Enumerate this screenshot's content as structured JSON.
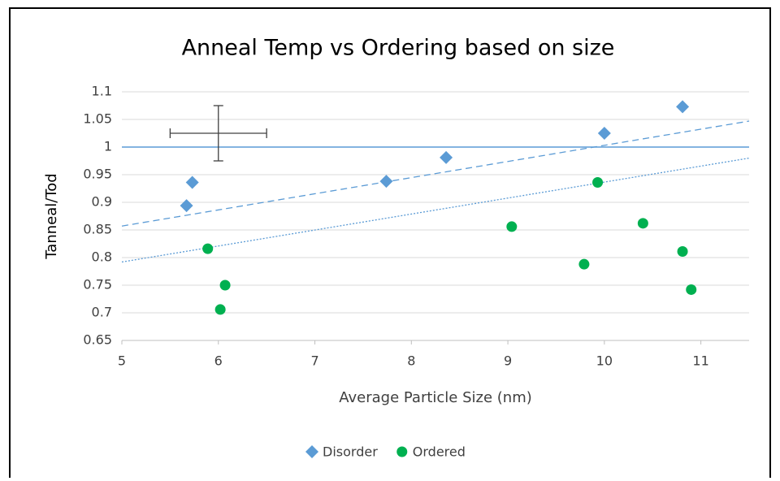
{
  "chart_data": {
    "type": "scatter",
    "title": "Anneal Temp vs Ordering based on size",
    "x_label": "Average Particle Size (nm)",
    "y_label": "Tanneal/Tod",
    "xlim": [
      5,
      11.5
    ],
    "xticks": [
      5,
      6,
      7,
      8,
      9,
      10,
      11
    ],
    "ylim": [
      0.65,
      1.1
    ],
    "yticks": [
      0.65,
      0.7,
      0.75,
      0.8,
      0.85,
      0.9,
      0.95,
      1,
      1.05,
      1.1
    ],
    "grid": true,
    "legend": "bottom",
    "series": [
      {
        "name": "Disorder",
        "color": "#5b9bd5",
        "marker": "diamond",
        "x": [
          5.67,
          5.73,
          7.74,
          8.36,
          10.0,
          10.81
        ],
        "values": [
          0.894,
          0.936,
          0.938,
          0.981,
          1.025,
          1.073
        ]
      },
      {
        "name": "Ordered",
        "color": "#00b050",
        "marker": "circle",
        "x": [
          5.89,
          6.07,
          6.02,
          9.04,
          9.79,
          9.93,
          10.4,
          10.81,
          10.9
        ],
        "values": [
          0.816,
          0.75,
          0.706,
          0.856,
          0.788,
          0.936,
          0.862,
          0.811,
          0.742
        ]
      }
    ],
    "trendlines": [
      {
        "color": "#5b9bd5",
        "dash": "8,5",
        "x": [
          5,
          11.5
        ],
        "y": [
          0.857,
          1.047
        ]
      },
      {
        "color": "#5b9bd5",
        "dash": "2,2",
        "x": [
          5,
          11.5
        ],
        "y": [
          0.792,
          0.98
        ]
      }
    ],
    "reference_line": {
      "y": 1,
      "color": "#5b9bd5"
    },
    "error_marker": {
      "x": 6,
      "y": 1.025,
      "xerr": 0.5,
      "yerr": 0.05,
      "color": "#404040"
    }
  }
}
